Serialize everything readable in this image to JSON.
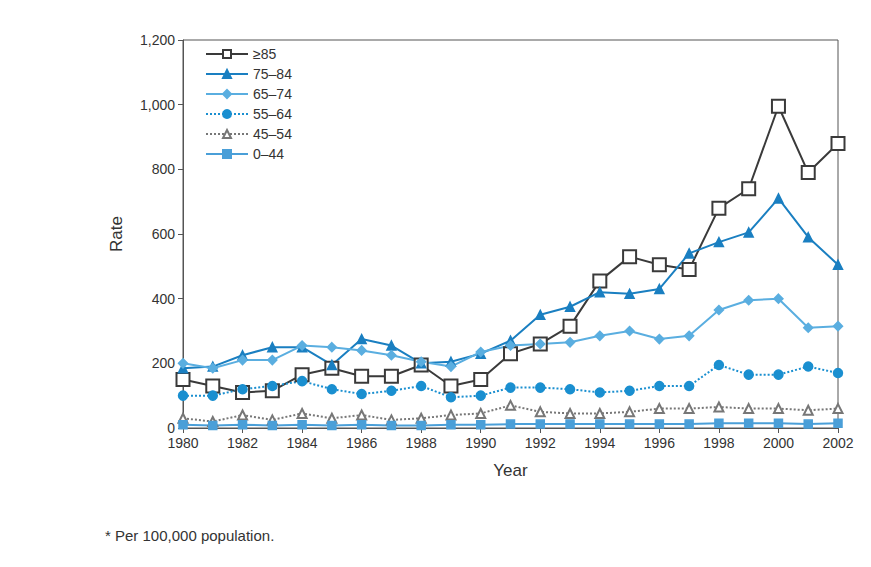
{
  "chart_data": {
    "type": "line",
    "x_label": "Year",
    "y_label": "Rate",
    "footnote": "* Per 100,000 population.",
    "x": [
      1980,
      1981,
      1982,
      1983,
      1984,
      1985,
      1986,
      1987,
      1988,
      1989,
      1990,
      1991,
      1992,
      1993,
      1994,
      1995,
      1996,
      1997,
      1998,
      1999,
      2000,
      2001,
      2002
    ],
    "xlim": [
      1980,
      2002
    ],
    "xticks": [
      1980,
      1982,
      1984,
      1986,
      1988,
      1990,
      1992,
      1994,
      1996,
      1998,
      2000,
      2002
    ],
    "ylim": [
      0,
      1200
    ],
    "yticks": [
      0,
      200,
      400,
      600,
      800,
      {
        "value": 1000,
        "label": "1,000"
      },
      {
        "value": 1200,
        "label": "1,200"
      }
    ],
    "grid": false,
    "legend": "top-left",
    "series": [
      {
        "name": "≥85",
        "color": "#3a3a3a",
        "marker": "square-open",
        "line_style": "solid",
        "values": [
          150,
          130,
          110,
          115,
          165,
          185,
          160,
          160,
          195,
          130,
          150,
          230,
          260,
          315,
          455,
          530,
          505,
          490,
          680,
          740,
          995,
          790,
          880
        ]
      },
      {
        "name": "75–84",
        "color": "#1a7fc1",
        "marker": "triangle",
        "line_style": "solid",
        "values": [
          185,
          190,
          225,
          250,
          250,
          195,
          275,
          255,
          200,
          205,
          230,
          270,
          350,
          375,
          420,
          415,
          430,
          540,
          575,
          605,
          710,
          590,
          505
        ]
      },
      {
        "name": "65–74",
        "color": "#5aaee0",
        "marker": "diamond",
        "line_style": "solid",
        "values": [
          200,
          185,
          210,
          210,
          255,
          250,
          240,
          225,
          205,
          190,
          235,
          255,
          260,
          265,
          285,
          300,
          275,
          285,
          365,
          395,
          400,
          310,
          315
        ]
      },
      {
        "name": "55–64",
        "color": "#1a8fd0",
        "marker": "circle",
        "line_style": "dotted",
        "values": [
          100,
          100,
          120,
          130,
          145,
          120,
          105,
          115,
          130,
          95,
          100,
          125,
          125,
          120,
          110,
          115,
          130,
          130,
          195,
          165,
          165,
          190,
          170
        ]
      },
      {
        "name": "45–54",
        "color": "#777777",
        "marker": "triangle-open",
        "line_style": "dotted",
        "values": [
          30,
          20,
          40,
          25,
          45,
          30,
          40,
          25,
          30,
          40,
          45,
          70,
          50,
          45,
          45,
          50,
          60,
          60,
          65,
          60,
          60,
          55,
          60
        ]
      },
      {
        "name": "0–44",
        "color": "#4a9fd8",
        "marker": "square",
        "line_style": "solid",
        "values": [
          10,
          8,
          10,
          8,
          10,
          8,
          10,
          8,
          8,
          10,
          10,
          12,
          12,
          12,
          12,
          12,
          12,
          12,
          15,
          15,
          15,
          12,
          15
        ]
      }
    ]
  }
}
